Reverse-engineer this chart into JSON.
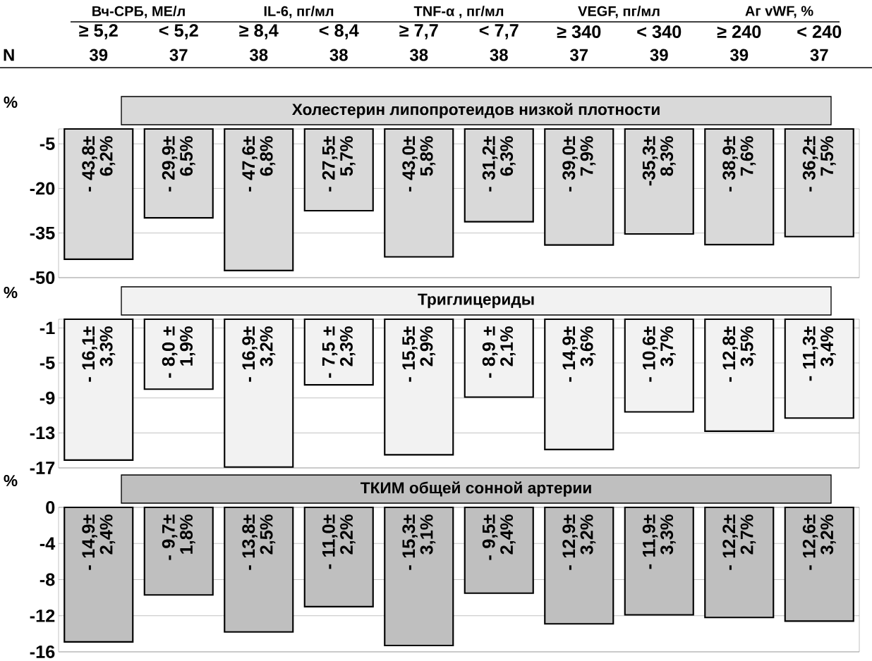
{
  "chart_data": [
    {
      "type": "bar",
      "title": "Холестерин липопротеидов низкой плотности",
      "ylabel": "%",
      "categories": [
        "≥ 5,2",
        "< 5,2",
        "≥ 8,4",
        "< 8,4",
        "≥ 7,7",
        "< 7,7",
        "≥ 340",
        "< 340",
        "≥ 240",
        "< 240"
      ],
      "annotations": [
        "Вч-СРБ, МЕ/л",
        "IL-6, пг/мл",
        "TNF-α , пг/мл",
        "VEGF, пг/мл",
        "Аг vWF, %",
        "N",
        "39",
        "37",
        "38",
        "38",
        "38",
        "38",
        "37",
        "39",
        "39",
        "37"
      ],
      "values": [
        -43.8,
        -29.9,
        -47.6,
        -27.5,
        -43.0,
        -31.2,
        -39.0,
        -35.3,
        -38.9,
        -36.2
      ],
      "value_labels": [
        "- 43,8± 6,2%",
        "- 29,9± 6,5%",
        "- 47,6± 6,8%",
        "- 27,5± 5,7%",
        "- 43,0± 5,8%",
        "- 31,2± 6,3%",
        "- 39,0± 7,9%",
        "-35,3± 8,3%",
        "- 38,9± 7,6%",
        "- 36,2± 7,5%"
      ],
      "color": "#d9d9d9",
      "ylim": [
        -50,
        0
      ],
      "yticks": [
        -5,
        -20,
        -35,
        -50
      ],
      "grid": "y"
    },
    {
      "type": "bar",
      "title": "Триглицериды",
      "ylabel": "%",
      "categories": [
        null,
        null,
        null,
        null,
        null,
        null,
        null,
        null,
        null,
        null
      ],
      "values": [
        -16.1,
        -8.0,
        -16.9,
        -7.5,
        -15.5,
        -8.9,
        -14.9,
        -10.6,
        -12.8,
        -11.3
      ],
      "value_labels": [
        "- 16,1± 3,3%",
        "- 8,0 ± 1,9%",
        "- 16,9± 3,2%",
        "- 7,5 ± 2,3%",
        "- 15,5± 2,9%",
        "- 8,9 ± 2,1%",
        "- 14,9± 3,6%",
        "- 10,6± 3,7%",
        "- 12,8± 3,5%",
        "- 11,3± 3,4%"
      ],
      "color": "#f2f2f2",
      "ylim": [
        -17,
        0
      ],
      "yticks": [
        -1,
        -5,
        -9,
        -13,
        -17
      ],
      "grid": "y",
      "tick_labels": "y"
    },
    {
      "type": "bar",
      "title": "ТКИМ общей сонной артерии",
      "ylabel": "%",
      "categories": [
        null,
        null,
        null,
        null,
        null,
        null,
        null,
        null,
        null,
        null
      ],
      "values": [
        -14.9,
        -9.7,
        -13.8,
        -11.0,
        -15.3,
        -9.5,
        -12.9,
        -11.9,
        -12.2,
        -12.6
      ],
      "value_labels": [
        "- 14,9± 2,4%",
        "- 9,7± 1,8%",
        "- 13,8± 2,5%",
        "- 11,0± 2,2%",
        "- 15,3± 3,1%",
        "- 9,5± 2,4%",
        "- 12,9± 3,2%",
        "- 11,9± 3,3%",
        "- 12,2± 2,7%",
        "- 12,6± 3,2%"
      ],
      "color": "#bfbfbf",
      "ylim": [
        -16,
        0
      ],
      "yticks": [
        0,
        -4,
        -8,
        -12,
        -16
      ],
      "grid": "y",
      "tick_labels": "y"
    }
  ]
}
